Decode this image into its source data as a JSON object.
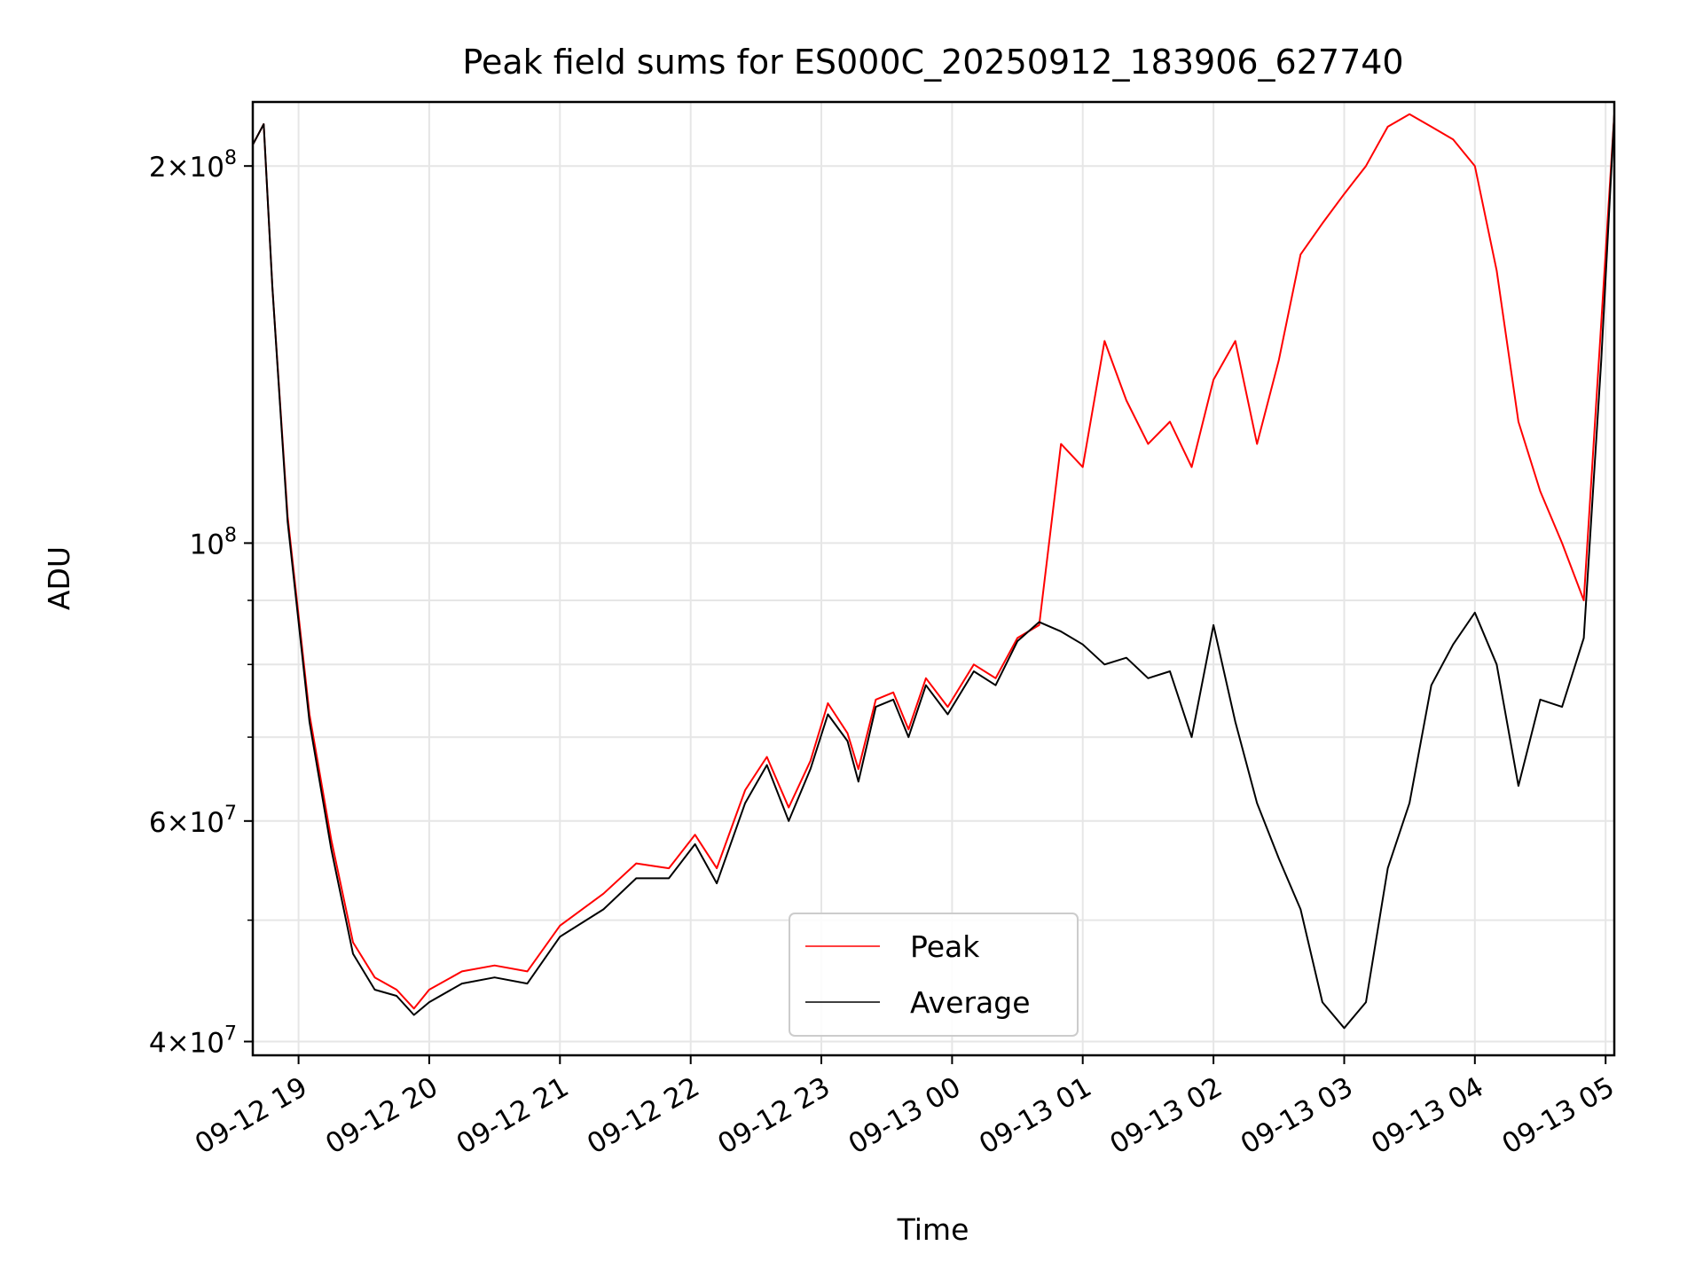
{
  "chart_data": {
    "type": "line",
    "title": "Peak field sums for ES000C_20250912_183906_627740",
    "xlabel": "Time",
    "ylabel": "ADU",
    "y_scale": "log",
    "ylim": [
      39000000,
      225000000
    ],
    "xlim": [
      "09-12 18:39",
      "09-13 05:04"
    ],
    "grid": true,
    "legend_position": "bottom-center",
    "x_ticks": [
      "09-12 19",
      "09-12 20",
      "09-12 21",
      "09-12 22",
      "09-12 23",
      "09-13 00",
      "09-13 01",
      "09-13 02",
      "09-13 03",
      "09-13 04",
      "09-13 05"
    ],
    "y_ticks": [
      {
        "value": 40000000,
        "mantissa": "4",
        "exp": "7"
      },
      {
        "value": 60000000,
        "mantissa": "6",
        "exp": "7"
      },
      {
        "value": 100000000,
        "mantissa": "",
        "exp": "8"
      },
      {
        "value": 200000000,
        "mantissa": "2",
        "exp": "8"
      }
    ],
    "series": [
      {
        "name": "Peak",
        "color": "#ff0000",
        "points": [
          [
            "09-12 18:39",
            208000000
          ],
          [
            "09-12 18:44",
            216000000
          ],
          [
            "09-12 18:48",
            160000000
          ],
          [
            "09-12 18:55",
            105000000
          ],
          [
            "09-12 19:05",
            73000000
          ],
          [
            "09-12 19:15",
            58000000
          ],
          [
            "09-12 19:25",
            48000000
          ],
          [
            "09-12 19:35",
            45000000
          ],
          [
            "09-12 19:45",
            44000000
          ],
          [
            "09-12 19:53",
            42500000
          ],
          [
            "09-12 20:00",
            44000000
          ],
          [
            "09-12 20:15",
            45500000
          ],
          [
            "09-12 20:30",
            46000000
          ],
          [
            "09-12 20:45",
            45500000
          ],
          [
            "09-12 21:00",
            49500000
          ],
          [
            "09-12 21:20",
            52500000
          ],
          [
            "09-12 21:35",
            55500000
          ],
          [
            "09-12 21:50",
            55000000
          ],
          [
            "09-12 22:02",
            58500000
          ],
          [
            "09-12 22:12",
            55000000
          ],
          [
            "09-12 22:25",
            63500000
          ],
          [
            "09-12 22:35",
            67500000
          ],
          [
            "09-12 22:45",
            61500000
          ],
          [
            "09-12 22:55",
            67000000
          ],
          [
            "09-12 23:03",
            74500000
          ],
          [
            "09-12 23:12",
            70500000
          ],
          [
            "09-12 23:17",
            66000000
          ],
          [
            "09-12 23:25",
            75000000
          ],
          [
            "09-12 23:33",
            76000000
          ],
          [
            "09-12 23:40",
            71000000
          ],
          [
            "09-12 23:48",
            78000000
          ],
          [
            "09-12 23:58",
            74000000
          ],
          [
            "09-13 00:10",
            80000000
          ],
          [
            "09-13 00:20",
            78000000
          ],
          [
            "09-13 00:30",
            84000000
          ],
          [
            "09-13 00:40",
            86000000
          ],
          [
            "09-13 00:50",
            120000000
          ],
          [
            "09-13 01:00",
            115000000
          ],
          [
            "09-13 01:10",
            145000000
          ],
          [
            "09-13 01:20",
            130000000
          ],
          [
            "09-13 01:30",
            120000000
          ],
          [
            "09-13 01:40",
            125000000
          ],
          [
            "09-13 01:50",
            115000000
          ],
          [
            "09-13 02:00",
            135000000
          ],
          [
            "09-13 02:10",
            145000000
          ],
          [
            "09-13 02:20",
            120000000
          ],
          [
            "09-13 02:30",
            140000000
          ],
          [
            "09-13 02:40",
            170000000
          ],
          [
            "09-13 02:50",
            180000000
          ],
          [
            "09-13 03:00",
            190000000
          ],
          [
            "09-13 03:10",
            200000000
          ],
          [
            "09-13 03:20",
            215000000
          ],
          [
            "09-13 03:30",
            220000000
          ],
          [
            "09-13 03:40",
            215000000
          ],
          [
            "09-13 03:50",
            210000000
          ],
          [
            "09-13 04:00",
            200000000
          ],
          [
            "09-13 04:10",
            165000000
          ],
          [
            "09-13 04:20",
            125000000
          ],
          [
            "09-13 04:30",
            110000000
          ],
          [
            "09-13 04:40",
            100000000
          ],
          [
            "09-13 04:50",
            90000000
          ],
          [
            "09-13 04:58",
            150000000
          ],
          [
            "09-13 05:04",
            220000000
          ]
        ]
      },
      {
        "name": "Average",
        "color": "#000000",
        "points": [
          [
            "09-12 18:39",
            208000000
          ],
          [
            "09-12 18:44",
            216000000
          ],
          [
            "09-12 18:48",
            160000000
          ],
          [
            "09-12 18:55",
            104000000
          ],
          [
            "09-12 19:05",
            72000000
          ],
          [
            "09-12 19:15",
            57000000
          ],
          [
            "09-12 19:25",
            47000000
          ],
          [
            "09-12 19:35",
            44000000
          ],
          [
            "09-12 19:45",
            43500000
          ],
          [
            "09-12 19:53",
            42000000
          ],
          [
            "09-12 20:00",
            43000000
          ],
          [
            "09-12 20:15",
            44500000
          ],
          [
            "09-12 20:30",
            45000000
          ],
          [
            "09-12 20:45",
            44500000
          ],
          [
            "09-12 21:00",
            48500000
          ],
          [
            "09-12 21:20",
            51000000
          ],
          [
            "09-12 21:35",
            54000000
          ],
          [
            "09-12 21:50",
            54000000
          ],
          [
            "09-12 22:02",
            57500000
          ],
          [
            "09-12 22:12",
            53500000
          ],
          [
            "09-12 22:25",
            62000000
          ],
          [
            "09-12 22:35",
            66500000
          ],
          [
            "09-12 22:45",
            60000000
          ],
          [
            "09-12 22:55",
            66000000
          ],
          [
            "09-12 23:03",
            73000000
          ],
          [
            "09-12 23:12",
            69500000
          ],
          [
            "09-12 23:17",
            64500000
          ],
          [
            "09-12 23:25",
            74000000
          ],
          [
            "09-12 23:33",
            75000000
          ],
          [
            "09-12 23:40",
            70000000
          ],
          [
            "09-12 23:48",
            77000000
          ],
          [
            "09-12 23:58",
            73000000
          ],
          [
            "09-13 00:10",
            79000000
          ],
          [
            "09-13 00:20",
            77000000
          ],
          [
            "09-13 00:30",
            83500000
          ],
          [
            "09-13 00:40",
            86500000
          ],
          [
            "09-13 00:50",
            85000000
          ],
          [
            "09-13 01:00",
            83000000
          ],
          [
            "09-13 01:10",
            80000000
          ],
          [
            "09-13 01:20",
            81000000
          ],
          [
            "09-13 01:30",
            78000000
          ],
          [
            "09-13 01:40",
            79000000
          ],
          [
            "09-13 01:50",
            70000000
          ],
          [
            "09-13 02:00",
            86000000
          ],
          [
            "09-13 02:10",
            72000000
          ],
          [
            "09-13 02:20",
            62000000
          ],
          [
            "09-13 02:30",
            56000000
          ],
          [
            "09-13 02:40",
            51000000
          ],
          [
            "09-13 02:50",
            43000000
          ],
          [
            "09-13 03:00",
            41000000
          ],
          [
            "09-13 03:10",
            43000000
          ],
          [
            "09-13 03:20",
            55000000
          ],
          [
            "09-13 03:30",
            62000000
          ],
          [
            "09-13 03:40",
            77000000
          ],
          [
            "09-13 03:50",
            83000000
          ],
          [
            "09-13 04:00",
            88000000
          ],
          [
            "09-13 04:10",
            80000000
          ],
          [
            "09-13 04:20",
            64000000
          ],
          [
            "09-13 04:30",
            75000000
          ],
          [
            "09-13 04:40",
            74000000
          ],
          [
            "09-13 04:50",
            84000000
          ],
          [
            "09-13 04:58",
            140000000
          ],
          [
            "09-13 05:04",
            220000000
          ]
        ]
      }
    ]
  }
}
